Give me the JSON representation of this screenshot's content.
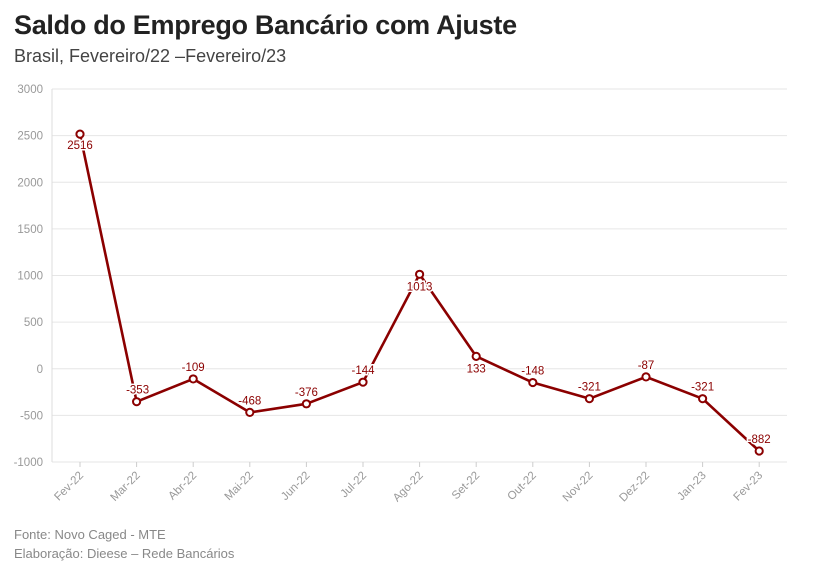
{
  "header": {
    "title": "Saldo do Emprego Bancário com Ajuste",
    "subtitle": "Brasil, Fevereiro/22 –Fevereiro/23"
  },
  "footer": {
    "source": "Fonte: Novo Caged - MTE",
    "credit": "Elaboração: Dieese – Rede Bancários"
  },
  "colors": {
    "line": "#8b0000",
    "grid": "#e6e6e6",
    "tick_text": "#999999"
  },
  "chart_data": {
    "type": "line",
    "title": "Saldo do Emprego Bancário com Ajuste",
    "subtitle": "Brasil, Fevereiro/22 –Fevereiro/23",
    "xlabel": "",
    "ylabel": "",
    "categories": [
      "Fev-22",
      "Mar-22",
      "Abr-22",
      "Mai-22",
      "Jun-22",
      "Jul-22",
      "Ago-22",
      "Set-22",
      "Out-22",
      "Nov-22",
      "Dez-22",
      "Jan-23",
      "Fev-23"
    ],
    "series": [
      {
        "values": [
          2516,
          -353,
          -109,
          -468,
          -376,
          -144,
          1013,
          133,
          -148,
          -321,
          -87,
          -321,
          -882
        ]
      }
    ],
    "data_labels": [
      "2516",
      "-353",
      "-109",
      "-468",
      "-376",
      "-144",
      "1013",
      "133",
      "-148",
      "-321",
      "-87",
      "-321",
      "-882"
    ],
    "ylim": [
      -1000,
      3000
    ],
    "yticks": [
      -1000,
      -500,
      0,
      500,
      1000,
      1500,
      2000,
      2500,
      3000
    ],
    "grid": true,
    "legend": "none"
  }
}
